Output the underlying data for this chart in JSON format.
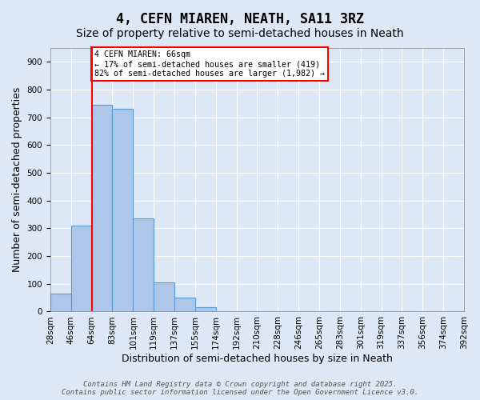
{
  "title1": "4, CEFN MIAREN, NEATH, SA11 3RZ",
  "title2": "Size of property relative to semi-detached houses in Neath",
  "xlabel": "Distribution of semi-detached houses by size in Neath",
  "ylabel": "Number of semi-detached properties",
  "bin_labels": [
    "28sqm",
    "46sqm",
    "64sqm",
    "83sqm",
    "101sqm",
    "119sqm",
    "137sqm",
    "155sqm",
    "174sqm",
    "192sqm",
    "210sqm",
    "228sqm",
    "246sqm",
    "265sqm",
    "283sqm",
    "301sqm",
    "319sqm",
    "337sqm",
    "356sqm",
    "374sqm",
    "392sqm"
  ],
  "bar_heights": [
    65,
    310,
    745,
    730,
    335,
    105,
    50,
    15,
    0,
    0,
    0,
    0,
    0,
    0,
    0,
    0,
    0,
    0,
    0,
    0
  ],
  "bar_color": "#aec6e8",
  "bar_edge_color": "#5b9bd5",
  "vline_x_index": 2,
  "vline_color": "red",
  "ylim": [
    0,
    950
  ],
  "yticks": [
    0,
    100,
    200,
    300,
    400,
    500,
    600,
    700,
    800,
    900
  ],
  "annotation_title": "4 CEFN MIAREN: 66sqm",
  "annotation_line1": "← 17% of semi-detached houses are smaller (419)",
  "annotation_line2": "82% of semi-detached houses are larger (1,982) →",
  "annotation_box_color": "#ffffff",
  "annotation_box_edge": "red",
  "footer1": "Contains HM Land Registry data © Crown copyright and database right 2025.",
  "footer2": "Contains public sector information licensed under the Open Government Licence v3.0.",
  "bg_color": "#dce8f5",
  "plot_bg_color": "#dce8f5",
  "grid_color": "#ffffff",
  "title_fontsize": 12,
  "subtitle_fontsize": 10,
  "axis_label_fontsize": 9,
  "tick_fontsize": 7.5,
  "footer_fontsize": 6.5
}
